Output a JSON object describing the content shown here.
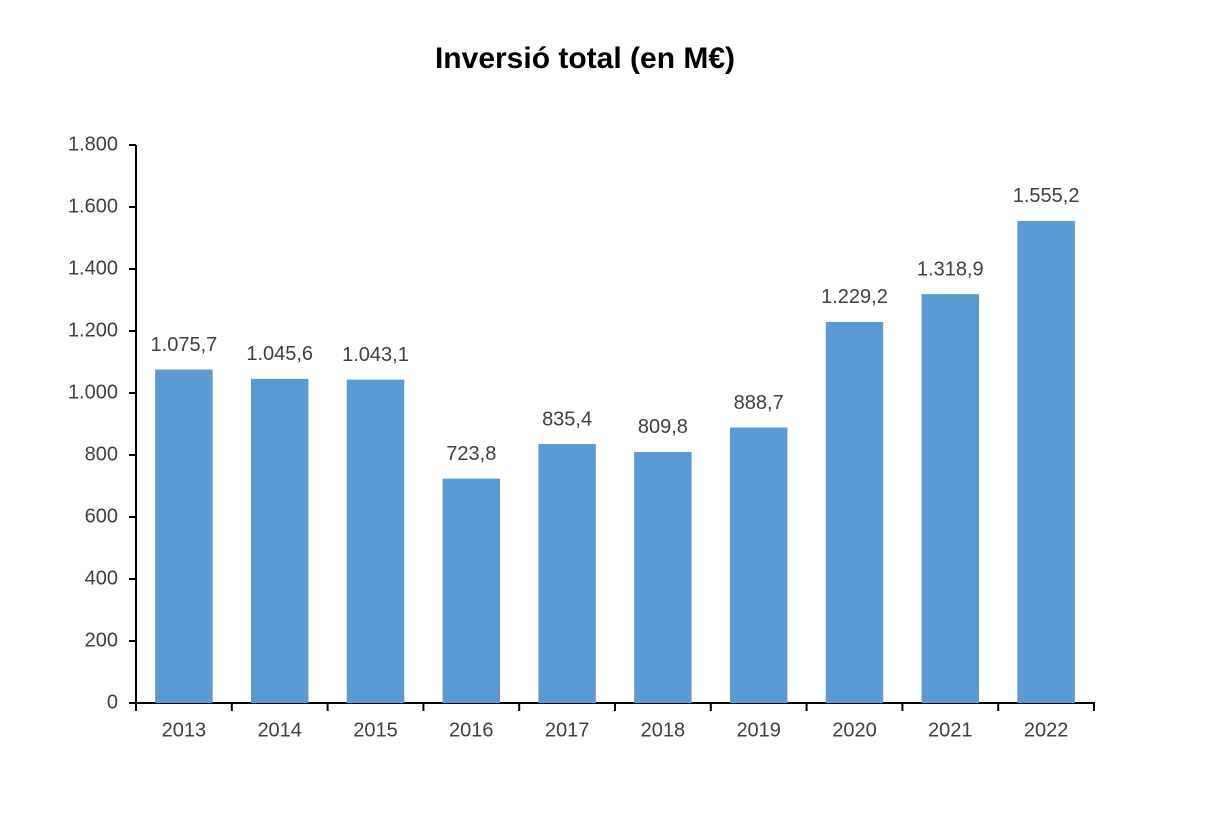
{
  "chart_data": {
    "type": "bar",
    "title": "Inversió total (en M€)",
    "categories": [
      "2013",
      "2014",
      "2015",
      "2016",
      "2017",
      "2018",
      "2019",
      "2020",
      "2021",
      "2022"
    ],
    "values": [
      1075.7,
      1045.6,
      1043.1,
      723.8,
      835.4,
      809.8,
      888.7,
      1229.2,
      1318.9,
      1555.2
    ],
    "value_labels": [
      "1.075,7",
      "1.045,6",
      "1.043,1",
      "723,8",
      "835,4",
      "809,8",
      "888,7",
      "1.229,2",
      "1.318,9",
      "1.555,2"
    ],
    "color": "#5b9bd5",
    "ylim": [
      0,
      1800
    ],
    "yticks": [
      0,
      200,
      400,
      600,
      800,
      {
        "value": 1000,
        "label": "1.000"
      },
      {
        "value": 1200,
        "label": "1.200"
      },
      {
        "value": 1400,
        "label": "1.400"
      },
      {
        "value": 1600,
        "label": "1.600"
      },
      {
        "value": 1800,
        "label": "1.800"
      }
    ],
    "grid": false
  }
}
